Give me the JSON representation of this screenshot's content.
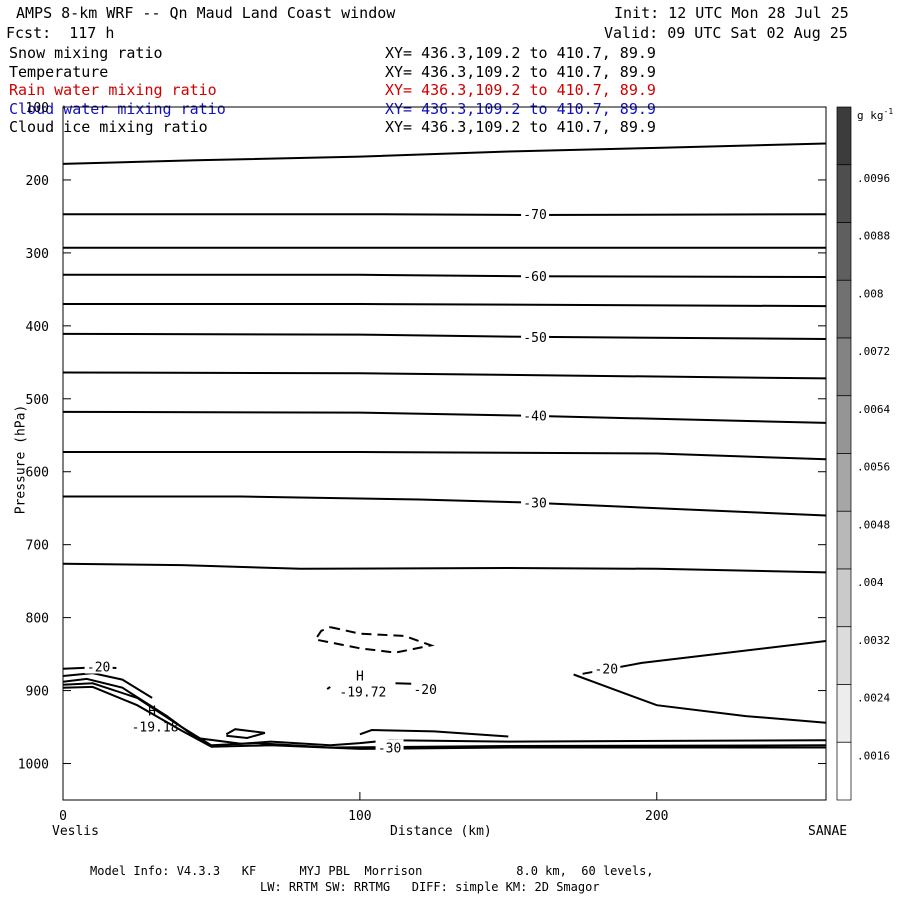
{
  "header": {
    "title": "AMPS 8-km WRF -- Qn Maud Land Coast window",
    "init": "Init: 12 UTC Mon 28 Jul 25",
    "fcst": "Fcst:  117 h",
    "valid": "Valid: 09 UTC Sat 02 Aug 25"
  },
  "fields": [
    {
      "name": "Snow mixing ratio",
      "xy": "XY= 436.3,109.2 to 410.7, 89.9",
      "color": "#000000"
    },
    {
      "name": "Temperature",
      "xy": "XY= 436.3,109.2 to 410.7, 89.9",
      "color": "#000000"
    },
    {
      "name": "Rain water mixing ratio",
      "xy": "XY= 436.3,109.2 to 410.7, 89.9",
      "color": "#d00000"
    },
    {
      "name": "Cloud water mixing ratio",
      "xy": "XY= 436.3,109.2 to 410.7, 89.9",
      "color": "#1010c0"
    },
    {
      "name": "Cloud ice mixing ratio",
      "xy": "XY= 436.3,109.2 to 410.7, 89.9",
      "color": "#000000"
    }
  ],
  "chart_data": {
    "type": "contour-cross-section",
    "xlabel": "Distance (km)",
    "ylabel": "Pressure (hPa)",
    "xlim": [
      0,
      257
    ],
    "ylim": [
      1050,
      100
    ],
    "x_ticks": [
      0,
      100,
      200
    ],
    "y_ticks": [
      100,
      200,
      300,
      400,
      500,
      600,
      700,
      800,
      900,
      1000
    ],
    "left_endpoint": "Veslis",
    "right_endpoint": "SANAE",
    "isotherms": [
      {
        "level": -80,
        "points": [
          [
            0,
            178
          ],
          [
            45,
            173
          ],
          [
            100,
            168
          ],
          [
            150,
            161
          ],
          [
            200,
            156
          ],
          [
            257,
            150
          ]
        ]
      },
      {
        "level": -70,
        "points": [
          [
            0,
            247
          ],
          [
            100,
            247
          ],
          [
            155,
            248
          ],
          [
            257,
            247
          ]
        ],
        "label_at": 155
      },
      {
        "level": -65,
        "points": [
          [
            0,
            293
          ],
          [
            100,
            293
          ],
          [
            257,
            293
          ]
        ]
      },
      {
        "level": -60,
        "points": [
          [
            0,
            330
          ],
          [
            100,
            330
          ],
          [
            155,
            332
          ],
          [
            257,
            333
          ]
        ],
        "label_at": 155
      },
      {
        "level": -55,
        "points": [
          [
            0,
            370
          ],
          [
            100,
            370
          ],
          [
            257,
            373
          ]
        ]
      },
      {
        "level": -50,
        "points": [
          [
            0,
            411
          ],
          [
            100,
            412
          ],
          [
            155,
            415
          ],
          [
            257,
            418
          ]
        ],
        "label_at": 155
      },
      {
        "level": -45,
        "points": [
          [
            0,
            464
          ],
          [
            100,
            465
          ],
          [
            257,
            472
          ]
        ]
      },
      {
        "level": -40,
        "points": [
          [
            0,
            518
          ],
          [
            100,
            519
          ],
          [
            155,
            523
          ],
          [
            257,
            533
          ]
        ],
        "label_at": 155
      },
      {
        "level": -35,
        "points": [
          [
            0,
            573
          ],
          [
            100,
            573
          ],
          [
            200,
            575
          ],
          [
            257,
            583
          ]
        ]
      },
      {
        "level": -30,
        "points": [
          [
            0,
            634
          ],
          [
            60,
            634
          ],
          [
            120,
            638
          ],
          [
            155,
            642
          ],
          [
            257,
            660
          ]
        ],
        "label_at": 155
      },
      {
        "level": -25,
        "points": [
          [
            0,
            726
          ],
          [
            40,
            728
          ],
          [
            80,
            733
          ],
          [
            150,
            732
          ],
          [
            200,
            733
          ],
          [
            257,
            738
          ]
        ]
      }
    ],
    "contour_labels": [
      {
        "text": "-70",
        "x": 159,
        "y": 247
      },
      {
        "text": "-60",
        "x": 159,
        "y": 332
      },
      {
        "text": "-50",
        "x": 159,
        "y": 415
      },
      {
        "text": "-40",
        "x": 159,
        "y": 523
      },
      {
        "text": "-30",
        "x": 159,
        "y": 642
      },
      {
        "text": "-20",
        "x": 12,
        "y": 867
      },
      {
        "text": "-20",
        "x": 183,
        "y": 870
      },
      {
        "text": "-20",
        "x": 122,
        "y": 898
      },
      {
        "text": "-30",
        "x": 110,
        "y": 978
      }
    ],
    "extrema": [
      {
        "symbol": "H",
        "value": "-19.18",
        "x": 30,
        "y": 934
      },
      {
        "symbol": "H",
        "value": "-19.72",
        "x": 100,
        "y": 886
      }
    ],
    "colorbar": {
      "unit": "g kg-1",
      "ticks": [
        ".0016",
        ".0024",
        ".0032",
        ".004",
        ".0048",
        ".0056",
        ".0064",
        ".0072",
        ".008",
        ".0088",
        ".0096"
      ]
    },
    "grid": false
  },
  "footer": {
    "line1": "Model Info: V4.3.3   KF      MYJ PBL  Morrison             8.0 km,  60 levels,",
    "line2": "LW: RRTM SW: RRTMG   DIFF: simple KM: 2D Smagor"
  }
}
